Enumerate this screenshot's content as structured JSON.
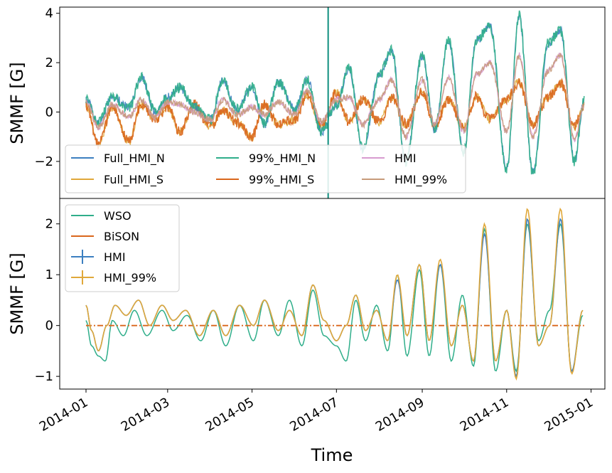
{
  "chart_data": [
    {
      "type": "line",
      "ylabel": "SMMF [G]",
      "ylim": [
        -3.5,
        4.25
      ],
      "yticks": [
        -2,
        0,
        2,
        4
      ],
      "xlim": [
        "2013-12-13",
        "2015-01-11"
      ],
      "grid": false,
      "legend": {
        "placement": "lower-left",
        "columns": 3
      },
      "vertical_marker": {
        "x": "2014-06-25",
        "color": "#0f8f7f"
      },
      "series": [
        {
          "name": "Full_HMI_N",
          "color": "#3c7fc0"
        },
        {
          "name": "Full_HMI_S",
          "color": "#e0a83a"
        },
        {
          "name": "99%_HMI_N",
          "color": "#2fae8a"
        },
        {
          "name": "99%_HMI_S",
          "color": "#d9661c"
        },
        {
          "name": "HMI",
          "color": "#d79bcf"
        },
        {
          "name": "HMI_99%",
          "color": "#c79a7a"
        }
      ],
      "north_envelope": {
        "x": [
          "2014-01-01",
          "2014-01-10",
          "2014-01-20",
          "2014-02-01",
          "2014-02-10",
          "2014-02-20",
          "2014-03-01",
          "2014-03-10",
          "2014-03-20",
          "2014-04-01",
          "2014-04-10",
          "2014-04-20",
          "2014-05-01",
          "2014-05-10",
          "2014-05-20",
          "2014-06-01",
          "2014-06-10",
          "2014-06-20",
          "2014-07-01",
          "2014-07-10",
          "2014-07-20",
          "2014-08-01",
          "2014-08-10",
          "2014-08-20",
          "2014-09-01",
          "2014-09-10",
          "2014-09-20",
          "2014-10-01",
          "2014-10-10",
          "2014-10-20",
          "2014-11-01",
          "2014-11-10",
          "2014-11-20",
          "2014-12-01",
          "2014-12-10",
          "2014-12-20",
          "2014-12-27"
        ],
        "y": [
          0.5,
          -0.4,
          0.6,
          0.2,
          1.4,
          0.0,
          0.6,
          1.0,
          0.2,
          -0.3,
          1.3,
          0.1,
          1.0,
          -0.5,
          1.2,
          0.1,
          1.3,
          -0.8,
          0.3,
          1.8,
          -1.5,
          1.5,
          2.5,
          -2.0,
          2.3,
          -0.7,
          2.9,
          -1.6,
          2.9,
          3.5,
          -2.3,
          3.9,
          -2.5,
          2.8,
          3.3,
          -2.0,
          0.5
        ]
      },
      "south_envelope": {
        "x": [
          "2014-01-01",
          "2014-01-10",
          "2014-01-20",
          "2014-02-01",
          "2014-02-10",
          "2014-02-20",
          "2014-03-01",
          "2014-03-10",
          "2014-03-20",
          "2014-04-01",
          "2014-04-10",
          "2014-04-20",
          "2014-05-01",
          "2014-05-10",
          "2014-05-20",
          "2014-06-01",
          "2014-06-10",
          "2014-06-20",
          "2014-07-01",
          "2014-07-10",
          "2014-07-20",
          "2014-08-01",
          "2014-08-10",
          "2014-08-20",
          "2014-09-01",
          "2014-09-10",
          "2014-09-20",
          "2014-10-01",
          "2014-10-10",
          "2014-10-20",
          "2014-11-01",
          "2014-11-10",
          "2014-11-20",
          "2014-12-01",
          "2014-12-10",
          "2014-12-20",
          "2014-12-27"
        ],
        "y": [
          0.3,
          -1.3,
          0.2,
          -1.2,
          0.3,
          -0.3,
          0.2,
          -0.8,
          0.3,
          -0.6,
          0.1,
          -0.4,
          -1.0,
          0.3,
          -0.5,
          -0.3,
          0.7,
          -0.6,
          0.8,
          -0.4,
          0.5,
          -0.4,
          0.6,
          -0.5,
          0.8,
          -0.6,
          0.5,
          -0.6,
          0.6,
          -0.3,
          0.5,
          1.2,
          -0.5,
          0.6,
          1.2,
          -0.6,
          0.3
        ]
      },
      "mean_curve": {
        "x": [
          "2014-01-01",
          "2014-01-10",
          "2014-01-20",
          "2014-02-01",
          "2014-02-10",
          "2014-02-20",
          "2014-03-01",
          "2014-03-10",
          "2014-03-20",
          "2014-04-01",
          "2014-04-10",
          "2014-04-20",
          "2014-05-01",
          "2014-05-10",
          "2014-05-20",
          "2014-06-01",
          "2014-06-10",
          "2014-06-20",
          "2014-07-01",
          "2014-07-10",
          "2014-07-20",
          "2014-08-01",
          "2014-08-10",
          "2014-08-20",
          "2014-09-01",
          "2014-09-10",
          "2014-09-20",
          "2014-10-01",
          "2014-10-10",
          "2014-10-20",
          "2014-11-01",
          "2014-11-10",
          "2014-11-20",
          "2014-12-01",
          "2014-12-10",
          "2014-12-20",
          "2014-12-27"
        ],
        "y": [
          0.4,
          -0.6,
          0.3,
          -0.2,
          0.5,
          -0.2,
          0.4,
          0.3,
          0.0,
          -0.3,
          0.5,
          -0.1,
          0.2,
          -0.1,
          0.4,
          -0.1,
          0.9,
          -0.4,
          0.5,
          0.6,
          -0.5,
          0.5,
          1.3,
          -1.0,
          1.3,
          -0.5,
          1.4,
          -0.8,
          1.5,
          2.0,
          -0.8,
          2.3,
          -1.0,
          1.7,
          2.3,
          -1.1,
          0.3
        ]
      }
    },
    {
      "type": "line",
      "xlabel": "Time",
      "ylabel": "SMMF [G]",
      "ylim": [
        -1.25,
        2.5
      ],
      "yticks": [
        -1,
        0,
        1,
        2
      ],
      "xlim": [
        "2013-12-13",
        "2015-01-11"
      ],
      "xticks": [
        "2014-01",
        "2014-03",
        "2014-05",
        "2014-07",
        "2014-09",
        "2014-11",
        "2015-01"
      ],
      "grid": false,
      "legend": {
        "placement": "upper-left",
        "columns": 1
      },
      "series": [
        {
          "name": "WSO",
          "color": "#2fae8a",
          "style": "line",
          "x": [
            "2014-01-01",
            "2014-01-05",
            "2014-01-10",
            "2014-01-15",
            "2014-01-20",
            "2014-01-28",
            "2014-02-05",
            "2014-02-14",
            "2014-02-25",
            "2014-03-05",
            "2014-03-15",
            "2014-03-25",
            "2014-04-03",
            "2014-04-12",
            "2014-04-22",
            "2014-05-02",
            "2014-05-10",
            "2014-05-20",
            "2014-05-28",
            "2014-06-06",
            "2014-06-14",
            "2014-06-22",
            "2014-07-01",
            "2014-07-08",
            "2014-07-15",
            "2014-07-22",
            "2014-07-30",
            "2014-08-07",
            "2014-08-14",
            "2014-08-21",
            "2014-08-30",
            "2014-09-06",
            "2014-09-14",
            "2014-09-22",
            "2014-09-30",
            "2014-10-08",
            "2014-10-16",
            "2014-10-24",
            "2014-11-01",
            "2014-11-08",
            "2014-11-16",
            "2014-11-24",
            "2014-12-02",
            "2014-12-10",
            "2014-12-18",
            "2014-12-26"
          ],
          "y": [
            0.1,
            -0.4,
            -0.6,
            -0.7,
            0.1,
            -0.2,
            0.3,
            -0.2,
            0.3,
            -0.1,
            0.2,
            -0.3,
            0.3,
            -0.4,
            0.4,
            -0.3,
            0.5,
            -0.2,
            0.5,
            -0.4,
            0.7,
            -0.2,
            -0.4,
            -0.7,
            0.5,
            -0.3,
            0.4,
            -0.5,
            1.0,
            -0.6,
            1.1,
            -0.6,
            1.2,
            -0.7,
            0.6,
            -0.8,
            1.9,
            -0.9,
            0.3,
            -0.9,
            2.0,
            -0.3,
            0.3,
            2.0,
            -0.9,
            0.2
          ]
        },
        {
          "name": "BiSON",
          "color": "#d9661c",
          "style": "dashdot",
          "x": [
            "2014-01-01",
            "2014-12-27"
          ],
          "y": [
            0.0,
            0.0
          ]
        },
        {
          "name": "HMI",
          "color": "#3c7fc0",
          "style": "errorbar",
          "x": [
            "2014-01-01",
            "2014-01-05",
            "2014-01-10",
            "2014-01-16",
            "2014-01-22",
            "2014-01-30",
            "2014-02-08",
            "2014-02-16",
            "2014-02-25",
            "2014-03-05",
            "2014-03-14",
            "2014-03-24",
            "2014-04-03",
            "2014-04-12",
            "2014-04-22",
            "2014-05-02",
            "2014-05-10",
            "2014-05-20",
            "2014-05-28",
            "2014-06-06",
            "2014-06-14",
            "2014-06-22",
            "2014-07-01",
            "2014-07-08",
            "2014-07-15",
            "2014-07-22",
            "2014-07-30",
            "2014-08-07",
            "2014-08-14",
            "2014-08-21",
            "2014-08-30",
            "2014-09-06",
            "2014-09-14",
            "2014-09-22",
            "2014-09-30",
            "2014-10-08",
            "2014-10-16",
            "2014-10-24",
            "2014-11-01",
            "2014-11-08",
            "2014-11-16",
            "2014-11-24",
            "2014-12-02",
            "2014-12-10",
            "2014-12-18",
            "2014-12-26"
          ],
          "y": [
            0.4,
            -0.1,
            -0.5,
            0.0,
            0.4,
            0.2,
            0.5,
            0.0,
            0.4,
            0.1,
            0.3,
            -0.2,
            0.3,
            -0.2,
            0.4,
            0.0,
            0.5,
            -0.1,
            0.3,
            -0.2,
            0.8,
            0.1,
            -0.3,
            0.0,
            0.6,
            -0.1,
            0.3,
            -0.3,
            0.9,
            -0.2,
            1.2,
            -0.3,
            1.2,
            -0.4,
            0.4,
            -0.7,
            1.8,
            -0.7,
            0.3,
            -1.0,
            2.1,
            -0.4,
            0.0,
            2.1,
            -0.9,
            0.3
          ]
        },
        {
          "name": "HMI_99%",
          "color": "#e0a83a",
          "style": "errorbar",
          "x": [
            "2014-01-01",
            "2014-01-05",
            "2014-01-10",
            "2014-01-16",
            "2014-01-22",
            "2014-01-30",
            "2014-02-08",
            "2014-02-16",
            "2014-02-25",
            "2014-03-05",
            "2014-03-14",
            "2014-03-24",
            "2014-04-03",
            "2014-04-12",
            "2014-04-22",
            "2014-05-02",
            "2014-05-10",
            "2014-05-20",
            "2014-05-28",
            "2014-06-06",
            "2014-06-14",
            "2014-06-22",
            "2014-07-01",
            "2014-07-08",
            "2014-07-15",
            "2014-07-22",
            "2014-07-30",
            "2014-08-07",
            "2014-08-14",
            "2014-08-21",
            "2014-08-30",
            "2014-09-06",
            "2014-09-14",
            "2014-09-22",
            "2014-09-30",
            "2014-10-08",
            "2014-10-16",
            "2014-10-24",
            "2014-11-01",
            "2014-11-08",
            "2014-11-16",
            "2014-11-24",
            "2014-12-02",
            "2014-12-10",
            "2014-12-18",
            "2014-12-26"
          ],
          "y": [
            0.4,
            -0.1,
            -0.5,
            0.0,
            0.4,
            0.2,
            0.5,
            0.0,
            0.4,
            0.1,
            0.3,
            -0.2,
            0.3,
            -0.2,
            0.4,
            0.0,
            0.5,
            -0.1,
            0.3,
            -0.2,
            0.8,
            0.1,
            -0.3,
            0.0,
            0.6,
            -0.1,
            0.3,
            -0.3,
            1.0,
            -0.2,
            1.2,
            -0.3,
            1.3,
            -0.4,
            0.4,
            -0.7,
            2.0,
            -0.7,
            0.3,
            -1.05,
            2.3,
            -0.4,
            0.0,
            2.3,
            -0.95,
            0.3
          ]
        }
      ]
    }
  ]
}
